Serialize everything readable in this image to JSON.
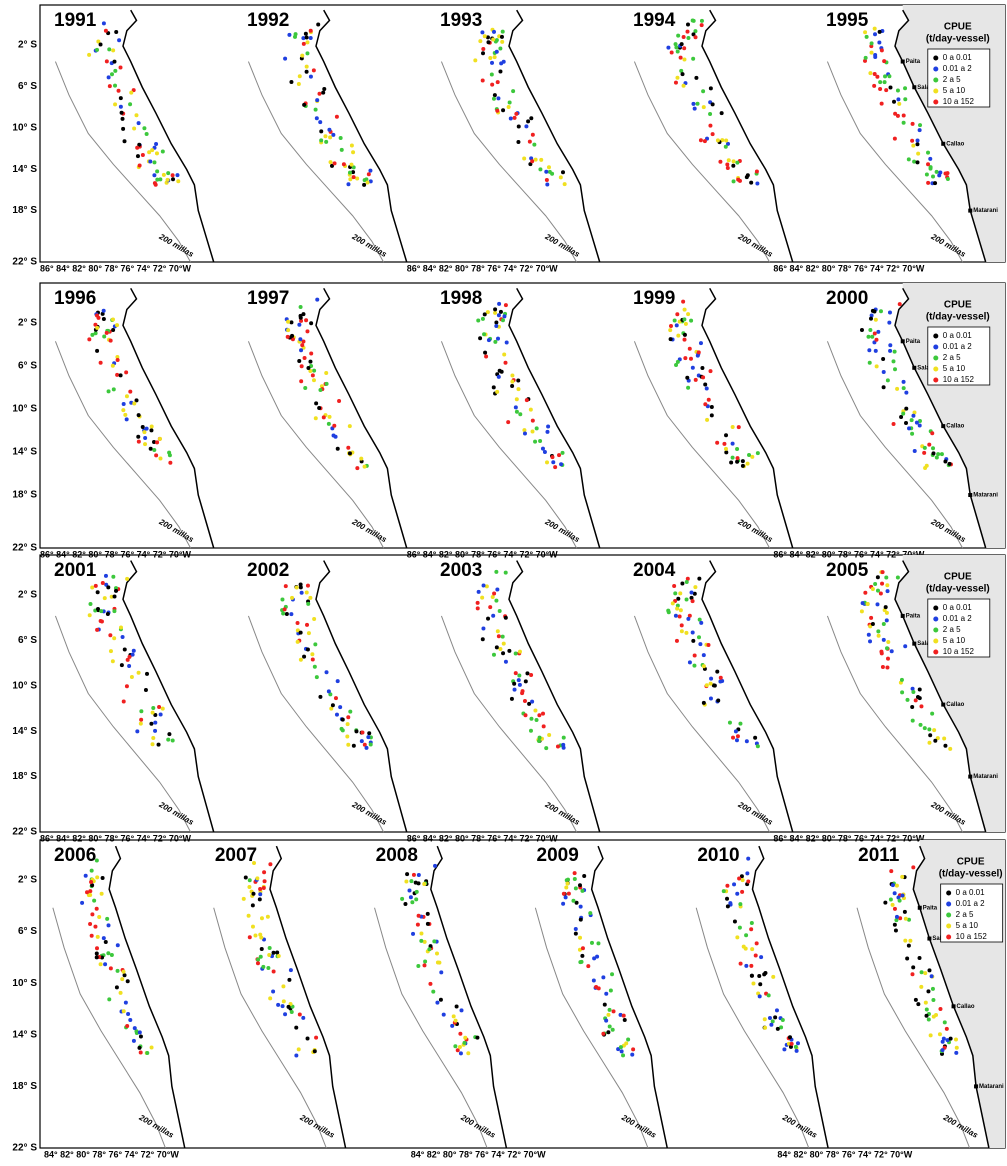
{
  "rows": [
    {
      "years": [
        "1991",
        "1992",
        "1993",
        "1994",
        "1995"
      ],
      "xaxis": [
        "86° 84° 82° 80° 78° 76° 74° 72° 70°W",
        "86° 84° 82° 80° 78° 76° 74° 72° 70°W",
        "86° 84° 82° 80° 78° 76° 74° 72° 70°W"
      ]
    },
    {
      "years": [
        "1996",
        "1997",
        "1998",
        "1999",
        "2000"
      ],
      "xaxis": [
        "86° 84° 82° 80° 78° 76° 74° 72° 70°W",
        "86° 84° 82° 80° 78° 76° 74° 72° 70°W",
        "86° 84° 82° 80° 78° 76° 74° 72° 70°W"
      ]
    },
    {
      "years": [
        "2001",
        "2002",
        "2003",
        "2004",
        "2005"
      ],
      "xaxis": [
        "86° 84° 82° 80° 78° 76° 74° 72° 70°W",
        "86° 84° 82° 80° 78° 76° 74° 72° 70°W",
        "86° 84° 82° 80° 78° 76° 74° 72° 70°W"
      ]
    },
    {
      "years": [
        "2006",
        "2007",
        "2008",
        "2009",
        "2010",
        "2011"
      ],
      "xaxis": [
        "84° 82° 80° 78° 76° 74° 72° 70°W",
        "84° 82° 80° 78° 76° 74° 72° 70°W",
        "84° 82° 80° 78° 76° 74° 72° 70°W"
      ]
    }
  ],
  "yticks": [
    "2° S",
    "6° S",
    "10° S",
    "14° S",
    "18° S",
    "22° S"
  ],
  "legend": {
    "title": "CPUE",
    "unit": "(t/day-vessel)",
    "items": [
      {
        "label": "0 a 0.01",
        "color": "#000000"
      },
      {
        "label": "0.01 a 2",
        "color": "#1f3fe0"
      },
      {
        "label": "2 a 5",
        "color": "#3cc83c"
      },
      {
        "label": "5 a 10",
        "color": "#f0e020"
      },
      {
        "label": "10 a 152",
        "color": "#f02020"
      }
    ]
  },
  "cities": [
    "Paita",
    "Salaverry",
    "Callao",
    "Matarani"
  ],
  "boundary_label": "200 millas"
}
